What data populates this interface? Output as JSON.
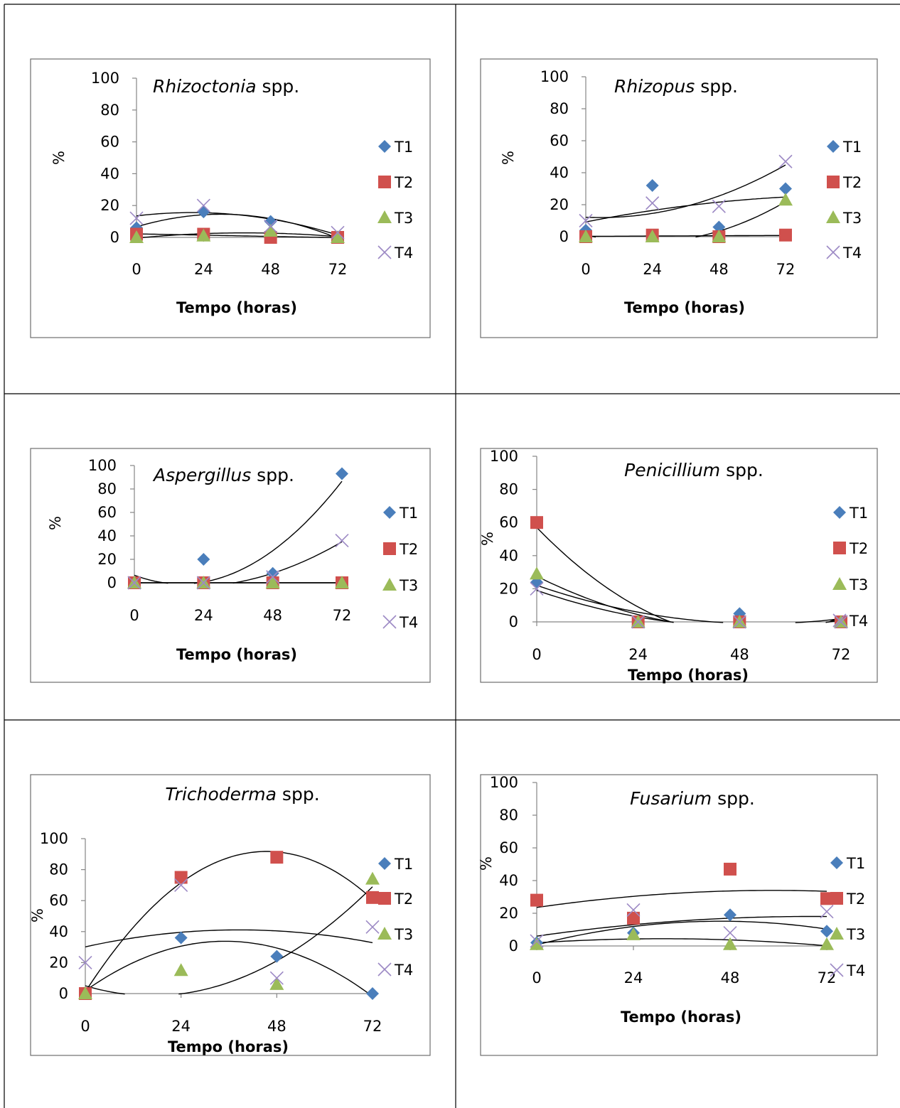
{
  "colors": {
    "T1": "#4a7ebb",
    "T2": "#d0504d",
    "T3": "#9bbb59",
    "T4": "#9d8ac5"
  },
  "markers": {
    "T1": "diamond",
    "T2": "square",
    "T3": "triangle",
    "T4": "cross"
  },
  "chart_data": [
    {
      "type": "scatter",
      "title_italic": "Rhizoctonia",
      "title_rest": " spp.",
      "xlabel": "Tempo (horas)",
      "ylabel": "%",
      "x": [
        0,
        24,
        48,
        72
      ],
      "xticks": [
        "0",
        "24",
        "48",
        "72"
      ],
      "yticks": [
        "0",
        "20",
        "40",
        "60",
        "80",
        "100"
      ],
      "ylim": [
        0,
        100
      ],
      "trendline": "polynomial, order 2",
      "legend": "right",
      "series": [
        {
          "name": "T1",
          "values": [
            6,
            16,
            10,
            0
          ]
        },
        {
          "name": "T2",
          "values": [
            2,
            2,
            0,
            0
          ]
        },
        {
          "name": "T3",
          "values": [
            0,
            1,
            4,
            0
          ]
        },
        {
          "name": "T4",
          "values": [
            12,
            20,
            7,
            3
          ]
        }
      ]
    },
    {
      "type": "scatter",
      "title_italic": "Rhizopus",
      "title_rest": " spp.",
      "xlabel": "Tempo (horas)",
      "ylabel": "%",
      "x": [
        0,
        24,
        48,
        72
      ],
      "xticks": [
        "0",
        "24",
        "48",
        "72"
      ],
      "yticks": [
        "0",
        "20",
        "40",
        "60",
        "80",
        "100"
      ],
      "ylim": [
        0,
        100
      ],
      "trendline": "polynomial, order 2",
      "legend": "right",
      "series": [
        {
          "name": "T1",
          "values": [
            4,
            32,
            6,
            30
          ]
        },
        {
          "name": "T2",
          "values": [
            0,
            1,
            0,
            1
          ]
        },
        {
          "name": "T3",
          "values": [
            0,
            0,
            0,
            23
          ]
        },
        {
          "name": "T4",
          "values": [
            10,
            21,
            19,
            47
          ]
        }
      ]
    },
    {
      "type": "scatter",
      "title_italic": "Aspergillus",
      "title_rest": " spp.",
      "xlabel": "Tempo (horas)",
      "ylabel": "%",
      "x": [
        0,
        24,
        48,
        72
      ],
      "xticks": [
        "0",
        "24",
        "48",
        "72"
      ],
      "yticks": [
        "0",
        "20",
        "40",
        "60",
        "80",
        "100"
      ],
      "ylim": [
        0,
        100
      ],
      "trendline": "polynomial, order 2",
      "legend": "right",
      "series": [
        {
          "name": "T1",
          "values": [
            0,
            20,
            8,
            93
          ]
        },
        {
          "name": "T2",
          "values": [
            0,
            0,
            0,
            0
          ]
        },
        {
          "name": "T3",
          "values": [
            0,
            0,
            0,
            0
          ]
        },
        {
          "name": "T4",
          "values": [
            0,
            0,
            5,
            36
          ]
        }
      ]
    },
    {
      "type": "scatter",
      "title_italic": "Penicillium",
      "title_rest": " spp.",
      "xlabel": "Tempo (horas)",
      "ylabel": "%",
      "x": [
        0,
        24,
        48,
        72
      ],
      "xticks": [
        "0",
        "24",
        "48",
        "72"
      ],
      "yticks": [
        "0",
        "20",
        "40",
        "60",
        "80",
        "100"
      ],
      "ylim": [
        0,
        100
      ],
      "trendline": "polynomial, order 2",
      "legend": "right",
      "series": [
        {
          "name": "T1",
          "values": [
            24,
            0,
            5,
            0
          ]
        },
        {
          "name": "T2",
          "values": [
            60,
            0,
            0,
            0
          ]
        },
        {
          "name": "T3",
          "values": [
            29,
            0,
            0,
            0
          ]
        },
        {
          "name": "T4",
          "values": [
            20,
            0,
            0,
            0
          ]
        }
      ]
    },
    {
      "type": "scatter",
      "title_italic": "Trichoderma",
      "title_rest": " spp.",
      "xlabel": "Tempo (horas)",
      "ylabel": "%",
      "x": [
        0,
        24,
        48,
        72
      ],
      "xticks": [
        "0",
        "24",
        "48",
        "72"
      ],
      "yticks": [
        "0",
        "20",
        "40",
        "60",
        "80",
        "100"
      ],
      "ylim": [
        0,
        100
      ],
      "trendline": "polynomial, order 2",
      "legend": "right",
      "series": [
        {
          "name": "T1",
          "values": [
            0,
            36,
            24,
            0
          ]
        },
        {
          "name": "T2",
          "values": [
            0,
            75,
            88,
            62
          ]
        },
        {
          "name": "T3",
          "values": [
            0,
            15,
            6,
            74
          ]
        },
        {
          "name": "T4",
          "values": [
            20,
            70,
            10,
            43
          ]
        }
      ]
    },
    {
      "type": "scatter",
      "title_italic": "Fusarium",
      "title_rest": " spp.",
      "xlabel": "Tempo (horas)",
      "ylabel": "%",
      "x": [
        0,
        24,
        48,
        72
      ],
      "xticks": [
        "0",
        "24",
        "48",
        "72"
      ],
      "yticks": [
        "0",
        "20",
        "40",
        "60",
        "80",
        "100"
      ],
      "ylim": [
        0,
        100
      ],
      "trendline": "polynomial, order 2",
      "legend": "right",
      "series": [
        {
          "name": "T1",
          "values": [
            2,
            8,
            19,
            9
          ]
        },
        {
          "name": "T2",
          "values": [
            28,
            17,
            47,
            29
          ]
        },
        {
          "name": "T3",
          "values": [
            1,
            7,
            1,
            1
          ]
        },
        {
          "name": "T4",
          "values": [
            3,
            22,
            8,
            21
          ]
        }
      ]
    }
  ]
}
